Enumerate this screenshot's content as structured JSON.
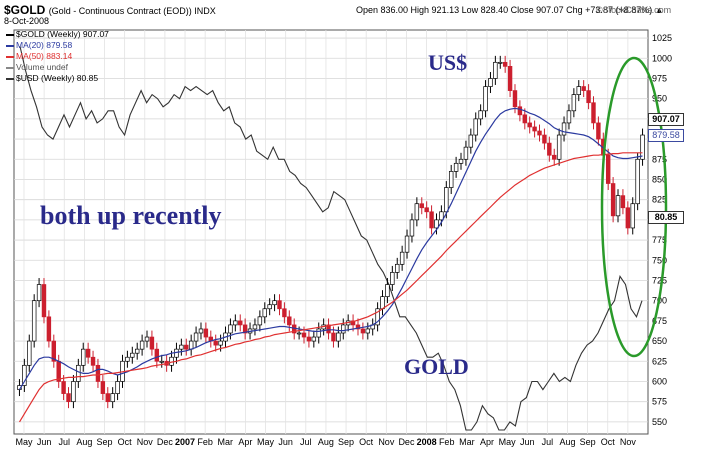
{
  "header": {
    "symbol": "$GOLD",
    "description": "(Gold - Continuous Contract (EOD)) INDX",
    "date": "8-Oct-2008",
    "ohlc": "Open 836.00  High 921.13  Low 828.40  Close 907.07  Chg +73.87 (+8.87%) ▲",
    "watermark": "©StockCharts.com"
  },
  "legend": [
    {
      "label": "$GOLD (Weekly) 907.07",
      "color": "#000000"
    },
    {
      "label": "MA(20) 879.58",
      "color": "#2b3aa0"
    },
    {
      "label": "MA(50) 883.14",
      "color": "#e03030"
    },
    {
      "label": "Volume undef",
      "color": "#888888"
    },
    {
      "label": "$USD (Weekly) 80.85",
      "color": "#333333"
    }
  ],
  "annotations": {
    "usd": "US$",
    "both": "both up recently",
    "gold": "GOLD"
  },
  "tags": {
    "gold": "907.07",
    "ma": "879.58",
    "usd": "80.85"
  },
  "colors": {
    "up": "#ffffff",
    "down": "#cc1f2e",
    "ma20": "#2b3aa0",
    "ma50": "#e03030",
    "usd": "#333333",
    "ellipse": "#2a9a2a"
  },
  "chart_data": {
    "type": "line",
    "y_ticks": [
      550,
      575,
      600,
      625,
      650,
      675,
      700,
      725,
      750,
      775,
      800,
      825,
      850,
      875,
      900,
      925,
      950,
      975,
      1000,
      1025
    ],
    "ylim": [
      535,
      1035
    ],
    "x_labels": [
      "May",
      "Jun",
      "Jul",
      "Aug",
      "Sep",
      "Oct",
      "Nov",
      "Dec",
      "2007",
      "Feb",
      "Mar",
      "Apr",
      "May",
      "Jun",
      "Jul",
      "Aug",
      "Sep",
      "Oct",
      "Nov",
      "Dec",
      "2008",
      "Feb",
      "Mar",
      "Apr",
      "May",
      "Jun",
      "Jul",
      "Aug",
      "Sep",
      "Oct",
      "Nov"
    ],
    "bold_x_labels": [
      "2007",
      "2008"
    ],
    "gold_close": [
      595,
      620,
      650,
      700,
      720,
      680,
      650,
      625,
      600,
      585,
      575,
      600,
      620,
      640,
      630,
      620,
      600,
      585,
      575,
      585,
      600,
      625,
      630,
      635,
      640,
      650,
      655,
      640,
      625,
      625,
      620,
      630,
      640,
      645,
      640,
      650,
      660,
      665,
      655,
      650,
      645,
      650,
      660,
      670,
      675,
      670,
      660,
      665,
      670,
      680,
      690,
      695,
      700,
      690,
      680,
      670,
      660,
      660,
      655,
      650,
      655,
      665,
      670,
      660,
      650,
      660,
      670,
      675,
      670,
      665,
      660,
      665,
      670,
      690,
      705,
      720,
      735,
      745,
      760,
      780,
      800,
      820,
      815,
      810,
      790,
      800,
      810,
      840,
      860,
      870,
      875,
      890,
      905,
      925,
      935,
      965,
      975,
      995,
      995,
      990,
      960,
      940,
      930,
      920,
      915,
      910,
      905,
      895,
      880,
      875,
      905,
      920,
      935,
      955,
      965,
      960,
      945,
      920,
      900,
      880,
      845,
      805,
      830,
      815,
      790,
      820,
      875,
      905
    ],
    "ma20": [
      590,
      600,
      610,
      620,
      628,
      630,
      630,
      628,
      625,
      622,
      618,
      615,
      612,
      610,
      610,
      612,
      615,
      615,
      613,
      610,
      608,
      610,
      612,
      615,
      618,
      622,
      625,
      628,
      630,
      632,
      633,
      635,
      636,
      637,
      638,
      640,
      642,
      645,
      648,
      650,
      652,
      653,
      655,
      657,
      659,
      660,
      661,
      662,
      663,
      664,
      665,
      666,
      667,
      668,
      668,
      667,
      666,
      665,
      664,
      663,
      662,
      662,
      663,
      664,
      664,
      663,
      663,
      664,
      665,
      666,
      667,
      668,
      670,
      674,
      680,
      687,
      695,
      705,
      716,
      728,
      740,
      752,
      763,
      772,
      780,
      788,
      797,
      808,
      820,
      833,
      846,
      859,
      872,
      885,
      896,
      906,
      915,
      924,
      931,
      935,
      937,
      938,
      937,
      935,
      932,
      930,
      927,
      923,
      919,
      914,
      911,
      909,
      908,
      907,
      906,
      905,
      903,
      899,
      894,
      889,
      884,
      879,
      877,
      876,
      876,
      877,
      878,
      879
    ],
    "ma50": [
      550,
      560,
      570,
      580,
      590,
      597,
      600,
      602,
      603,
      604,
      605,
      605,
      606,
      606,
      607,
      608,
      608,
      609,
      610,
      610,
      611,
      612,
      613,
      614,
      615,
      616,
      617,
      619,
      620,
      621,
      622,
      624,
      625,
      627,
      628,
      630,
      632,
      633,
      635,
      637,
      639,
      641,
      642,
      644,
      646,
      647,
      649,
      650,
      652,
      653,
      655,
      656,
      658,
      659,
      660,
      661,
      662,
      663,
      664,
      665,
      666,
      667,
      668,
      669,
      670,
      671,
      672,
      673,
      674,
      676,
      678,
      680,
      683,
      686,
      690,
      694,
      698,
      703,
      708,
      713,
      719,
      725,
      731,
      737,
      743,
      749,
      755,
      762,
      768,
      774,
      780,
      786,
      792,
      798,
      804,
      810,
      816,
      822,
      828,
      833,
      838,
      843,
      847,
      851,
      855,
      858,
      861,
      864,
      866,
      868,
      870,
      872,
      874,
      876,
      877,
      878,
      879,
      880,
      880,
      881,
      881,
      882,
      882,
      883,
      883,
      883,
      883,
      883
    ],
    "usd": [
      1015,
      985,
      960,
      940,
      915,
      905,
      900,
      915,
      930,
      915,
      930,
      945,
      925,
      935,
      920,
      925,
      935,
      935,
      915,
      905,
      930,
      945,
      960,
      945,
      955,
      950,
      940,
      945,
      955,
      950,
      965,
      960,
      965,
      960,
      955,
      960,
      945,
      935,
      940,
      920,
      915,
      900,
      905,
      885,
      880,
      875,
      890,
      875,
      875,
      860,
      855,
      845,
      840,
      830,
      820,
      810,
      815,
      835,
      830,
      825,
      810,
      795,
      780,
      775,
      760,
      745,
      735,
      720,
      700,
      680,
      680,
      670,
      660,
      645,
      630,
      630,
      635,
      620,
      600,
      590,
      570,
      540,
      540,
      550,
      570,
      560,
      555,
      540,
      540,
      550,
      545,
      575,
      580,
      600,
      600,
      590,
      600,
      610,
      600,
      605,
      600,
      620,
      635,
      645,
      650,
      660,
      675,
      690,
      700,
      730,
      720,
      690,
      680,
      700
    ]
  }
}
